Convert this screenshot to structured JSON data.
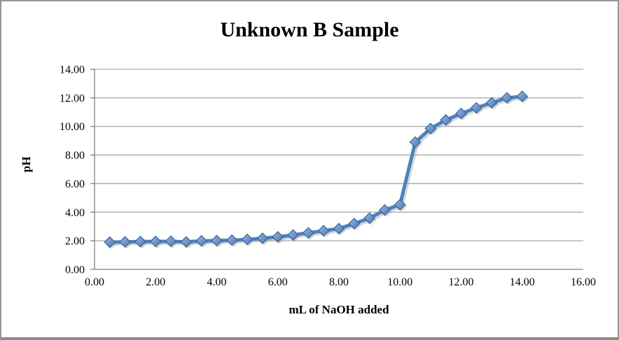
{
  "window": {
    "background": "#ffffff",
    "frame_border_color": "#969696"
  },
  "chart_data": {
    "type": "line",
    "title": "Unknown B Sample",
    "xlabel": "mL of NaOH added",
    "ylabel": "pH",
    "legend": "none",
    "grid": "horizontal",
    "marker": "diamond",
    "xlim": [
      0,
      16
    ],
    "ylim": [
      0,
      14
    ],
    "x_tick_labels": [
      "0.00",
      "2.00",
      "4.00",
      "6.00",
      "8.00",
      "10.00",
      "12.00",
      "14.00",
      "16.00"
    ],
    "y_tick_labels": [
      "0.00",
      "2.00",
      "4.00",
      "6.00",
      "8.00",
      "10.00",
      "12.00",
      "14.00"
    ],
    "series": [
      {
        "name": "pH",
        "x": [
          0.5,
          1.0,
          1.5,
          2.0,
          2.5,
          3.0,
          3.5,
          4.0,
          4.5,
          5.0,
          5.5,
          6.0,
          6.5,
          7.0,
          7.5,
          8.0,
          8.5,
          9.0,
          9.5,
          10.0,
          10.5,
          11.0,
          11.5,
          12.0,
          12.5,
          13.0,
          13.5,
          14.0
        ],
        "y": [
          1.9,
          1.92,
          1.94,
          1.95,
          1.96,
          1.92,
          1.99,
          2.01,
          2.04,
          2.09,
          2.17,
          2.27,
          2.4,
          2.55,
          2.7,
          2.85,
          3.2,
          3.58,
          4.15,
          4.52,
          8.9,
          9.85,
          10.45,
          10.9,
          11.3,
          11.65,
          12.0,
          12.1
        ]
      }
    ],
    "colors": {
      "line": "#4F81BD",
      "marker_fill_light": "#9BBBE3",
      "marker_fill_dark": "#4875AE",
      "marker_border": "#3C699F",
      "shadow": "#9E9E9E",
      "gridline": "#A6A6A6",
      "axis": "#808080",
      "text": "#000000"
    }
  }
}
